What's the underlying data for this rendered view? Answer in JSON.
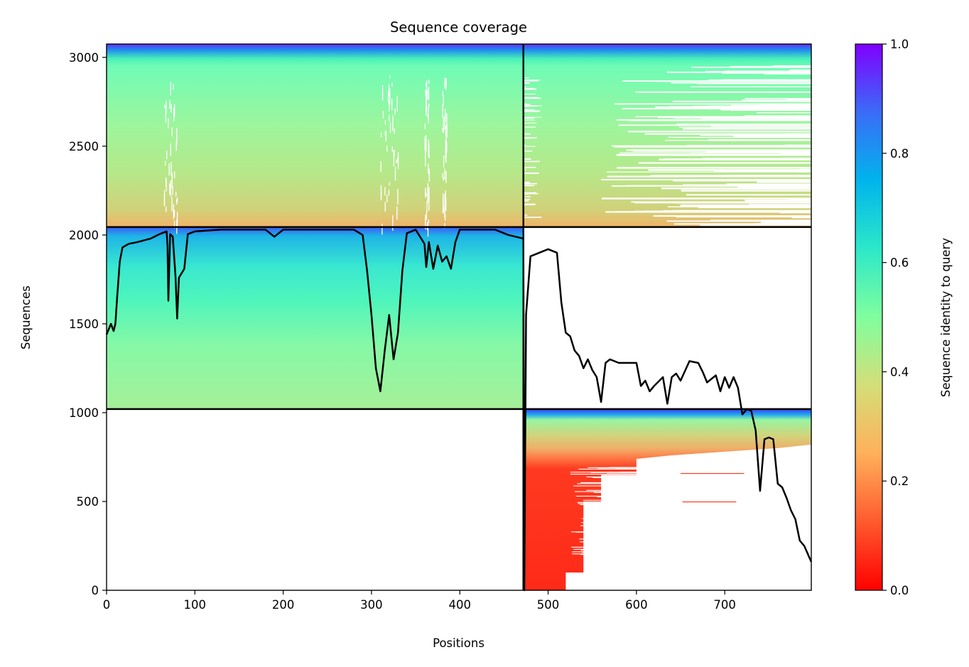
{
  "chart_data": {
    "type": "heatmap",
    "title": "Sequence coverage",
    "xlabel": "Positions",
    "ylabel": "Sequences",
    "xlim": [
      0,
      798
    ],
    "ylim": [
      0,
      3075
    ],
    "xticks": [
      0,
      100,
      200,
      300,
      400,
      500,
      600,
      700
    ],
    "yticks": [
      0,
      500,
      1000,
      1500,
      2000,
      2500,
      3000
    ],
    "colorbar": {
      "label": "Sequence identity to query",
      "range": [
        0,
        1
      ],
      "ticks": [
        "0.0",
        "0.2",
        "0.4",
        "0.6",
        "0.8",
        "1.0"
      ],
      "colormap": "rainbow_r"
    },
    "boundary_x": 472,
    "blocks": [
      {
        "x0": 0,
        "x1": 472,
        "y0": 2045,
        "y1": 3075,
        "identity_top": 0.85,
        "identity_bottom": 0.3
      },
      {
        "x0": 472,
        "x1": 798,
        "y0": 2045,
        "y1": 3075,
        "identity_top": 0.85,
        "identity_bottom": 0.3
      },
      {
        "x0": 0,
        "x1": 472,
        "y0": 1020,
        "y1": 2045,
        "identity_top": 0.8,
        "identity_bottom": 0.42
      },
      {
        "x0": 472,
        "x1": 798,
        "y0": 0,
        "y1": 1020,
        "identity_top": 0.9,
        "identity_bottom": 0.05
      }
    ],
    "coverage_line": {
      "x": [
        0,
        5,
        8,
        10,
        12,
        15,
        18,
        25,
        35,
        50,
        60,
        68,
        69,
        70,
        72,
        75,
        78,
        80,
        82,
        88,
        92,
        100,
        130,
        160,
        180,
        190,
        200,
        240,
        280,
        290,
        295,
        300,
        305,
        310,
        315,
        320,
        325,
        330,
        335,
        340,
        350,
        360,
        362,
        365,
        370,
        375,
        380,
        385,
        390,
        395,
        400,
        420,
        440,
        455,
        472,
        473,
        475,
        480,
        490,
        500,
        510,
        515,
        520,
        525,
        530,
        535,
        540,
        545,
        550,
        555,
        560,
        565,
        570,
        575,
        580,
        600,
        605,
        610,
        615,
        620,
        630,
        635,
        640,
        645,
        650,
        660,
        670,
        675,
        680,
        690,
        695,
        700,
        705,
        710,
        715,
        720,
        725,
        730,
        735,
        740,
        745,
        750,
        755,
        760,
        765,
        770,
        775,
        780,
        785,
        790,
        798
      ],
      "y": [
        1440,
        1500,
        1460,
        1500,
        1650,
        1850,
        1930,
        1950,
        1960,
        1980,
        2005,
        2020,
        1940,
        1630,
        2005,
        1990,
        1770,
        1530,
        1760,
        1810,
        2005,
        2020,
        2030,
        2030,
        2030,
        1990,
        2030,
        2030,
        2030,
        2000,
        1800,
        1550,
        1250,
        1120,
        1350,
        1550,
        1300,
        1450,
        1800,
        2010,
        2030,
        1950,
        1820,
        1960,
        1810,
        1940,
        1850,
        1880,
        1810,
        1960,
        2030,
        2030,
        2030,
        2000,
        1980,
        0,
        1550,
        1880,
        1900,
        1920,
        1900,
        1620,
        1450,
        1430,
        1350,
        1320,
        1250,
        1300,
        1240,
        1200,
        1060,
        1280,
        1300,
        1290,
        1280,
        1280,
        1150,
        1180,
        1120,
        1150,
        1200,
        1050,
        1200,
        1220,
        1180,
        1290,
        1280,
        1230,
        1170,
        1210,
        1120,
        1200,
        1140,
        1200,
        1140,
        990,
        1020,
        1010,
        900,
        560,
        850,
        860,
        850,
        600,
        580,
        520,
        450,
        400,
        280,
        250,
        160
      ]
    }
  }
}
